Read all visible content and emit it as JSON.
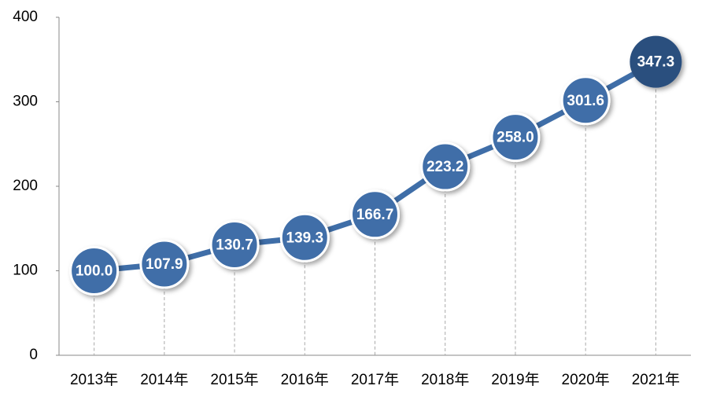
{
  "chart_data": {
    "type": "line",
    "categories": [
      "2013年",
      "2014年",
      "2015年",
      "2016年",
      "2017年",
      "2018年",
      "2019年",
      "2020年",
      "2021年"
    ],
    "values": [
      100.0,
      107.9,
      130.7,
      139.3,
      166.7,
      223.2,
      258.0,
      301.6,
      347.3
    ],
    "value_labels": [
      "100.0",
      "107.9",
      "130.7",
      "139.3",
      "166.7",
      "223.2",
      "258.0",
      "301.6",
      "347.3"
    ],
    "color": "#3f6ea8",
    "highlight_color": "#2c4f7e",
    "ylim": [
      0,
      400
    ],
    "yticks": [
      0,
      100,
      200,
      300,
      400
    ],
    "grid": false
  }
}
